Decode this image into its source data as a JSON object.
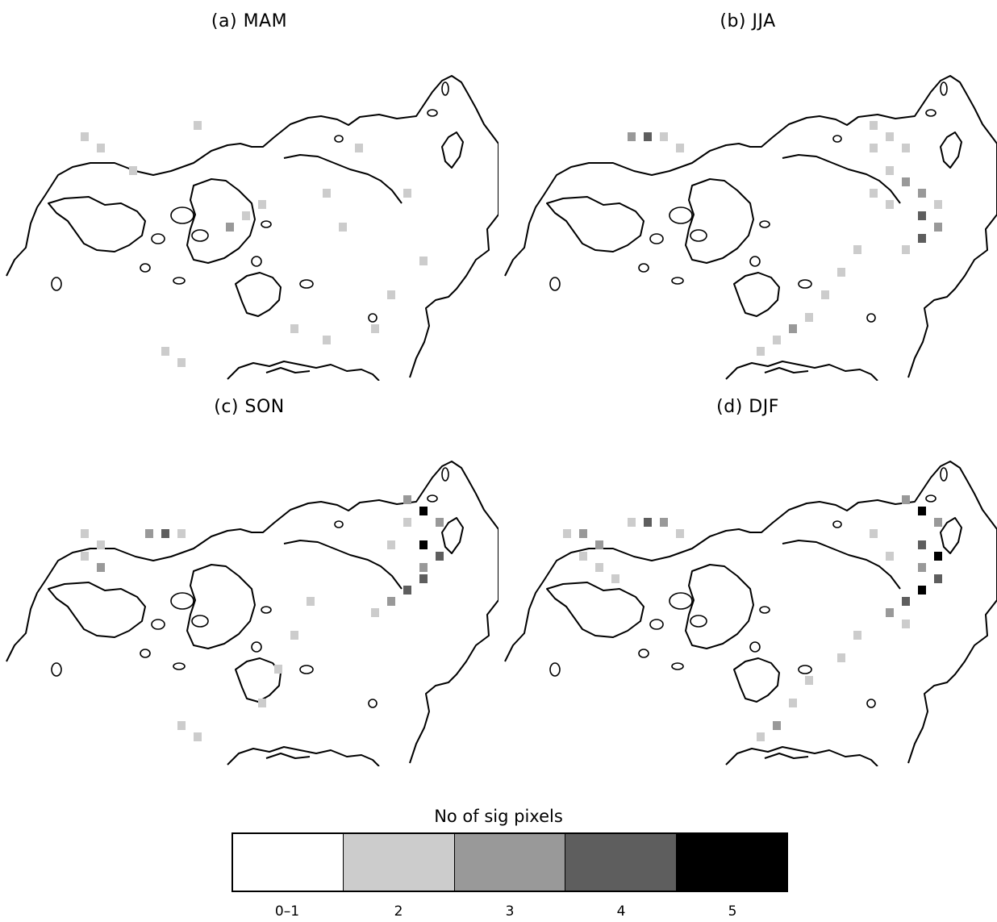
{
  "panels": [
    {
      "title": "(a)  MAM",
      "cells": [
        [
          5,
          8,
          2
        ],
        [
          6,
          9,
          2
        ],
        [
          8,
          11,
          2
        ],
        [
          12,
          7,
          2
        ],
        [
          15,
          15,
          2
        ],
        [
          14,
          16,
          3
        ],
        [
          16,
          14,
          2
        ],
        [
          20,
          13,
          2
        ],
        [
          21,
          16,
          2
        ],
        [
          22,
          9,
          2
        ],
        [
          25,
          13,
          2
        ],
        [
          26,
          19,
          2
        ],
        [
          24,
          22,
          2
        ],
        [
          18,
          25,
          2
        ],
        [
          20,
          26,
          2
        ],
        [
          23,
          25,
          2
        ],
        [
          10,
          27,
          2
        ],
        [
          11,
          28,
          2
        ]
      ]
    },
    {
      "title": "(b)  JJA",
      "cells": [
        [
          8,
          8,
          3
        ],
        [
          9,
          8,
          4
        ],
        [
          10,
          8,
          2
        ],
        [
          11,
          9,
          2
        ],
        [
          23,
          7,
          2
        ],
        [
          24,
          8,
          2
        ],
        [
          25,
          9,
          2
        ],
        [
          25,
          12,
          3
        ],
        [
          26,
          13,
          3
        ],
        [
          27,
          14,
          2
        ],
        [
          26,
          15,
          4
        ],
        [
          27,
          16,
          3
        ],
        [
          26,
          17,
          4
        ],
        [
          25,
          18,
          2
        ],
        [
          23,
          9,
          2
        ],
        [
          24,
          11,
          2
        ],
        [
          23,
          13,
          2
        ],
        [
          24,
          14,
          2
        ],
        [
          22,
          18,
          2
        ],
        [
          21,
          20,
          2
        ],
        [
          20,
          22,
          2
        ],
        [
          19,
          24,
          2
        ],
        [
          18,
          25,
          3
        ],
        [
          17,
          26,
          2
        ],
        [
          16,
          27,
          2
        ]
      ]
    },
    {
      "title": "(c)  SON",
      "cells": [
        [
          5,
          9,
          2
        ],
        [
          6,
          10,
          2
        ],
        [
          5,
          11,
          2
        ],
        [
          6,
          12,
          3
        ],
        [
          9,
          9,
          3
        ],
        [
          10,
          9,
          4
        ],
        [
          11,
          9,
          2
        ],
        [
          25,
          6,
          3
        ],
        [
          26,
          7,
          5
        ],
        [
          27,
          8,
          3
        ],
        [
          25,
          8,
          2
        ],
        [
          26,
          10,
          5
        ],
        [
          27,
          11,
          4
        ],
        [
          26,
          12,
          3
        ],
        [
          26,
          13,
          4
        ],
        [
          25,
          14,
          4
        ],
        [
          24,
          15,
          3
        ],
        [
          23,
          16,
          2
        ],
        [
          24,
          10,
          2
        ],
        [
          19,
          15,
          2
        ],
        [
          18,
          18,
          2
        ],
        [
          17,
          21,
          2
        ],
        [
          16,
          24,
          2
        ],
        [
          11,
          26,
          2
        ],
        [
          12,
          27,
          2
        ]
      ]
    },
    {
      "title": "(d)  DJF",
      "cells": [
        [
          4,
          9,
          2
        ],
        [
          5,
          9,
          3
        ],
        [
          6,
          10,
          3
        ],
        [
          5,
          11,
          2
        ],
        [
          6,
          12,
          2
        ],
        [
          7,
          13,
          2
        ],
        [
          8,
          8,
          2
        ],
        [
          9,
          8,
          4
        ],
        [
          10,
          8,
          3
        ],
        [
          11,
          9,
          2
        ],
        [
          25,
          6,
          3
        ],
        [
          26,
          7,
          5
        ],
        [
          27,
          8,
          3
        ],
        [
          26,
          10,
          4
        ],
        [
          27,
          11,
          5
        ],
        [
          26,
          12,
          3
        ],
        [
          27,
          13,
          4
        ],
        [
          26,
          14,
          5
        ],
        [
          25,
          15,
          4
        ],
        [
          24,
          16,
          3
        ],
        [
          25,
          17,
          2
        ],
        [
          23,
          9,
          2
        ],
        [
          24,
          11,
          2
        ],
        [
          22,
          18,
          2
        ],
        [
          21,
          20,
          2
        ],
        [
          19,
          22,
          2
        ],
        [
          18,
          24,
          2
        ],
        [
          17,
          26,
          3
        ],
        [
          16,
          27,
          2
        ]
      ]
    }
  ],
  "legend": {
    "title": "No of sig pixels",
    "classes": [
      {
        "label": "0–1",
        "color": "#ffffff"
      },
      {
        "label": "2",
        "color": "#cccccc"
      },
      {
        "label": "3",
        "color": "#999999"
      },
      {
        "label": "4",
        "color": "#5e5e5e"
      },
      {
        "label": "5",
        "color": "#000000"
      }
    ]
  }
}
